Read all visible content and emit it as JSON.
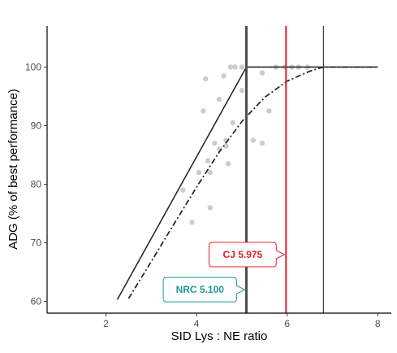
{
  "chart_data": {
    "type": "scatter",
    "xlabel": "SID Lys : NE ratio",
    "ylabel": "ADG (% of best performance)",
    "xlim": [
      0.7,
      8.3
    ],
    "ylim": [
      58.0,
      107.0
    ],
    "x_ticks": [
      2,
      4,
      6,
      8
    ],
    "y_ticks": [
      60,
      70,
      80,
      90,
      100
    ],
    "grid": false,
    "points": [
      {
        "x": 3.7,
        "y": 79.0
      },
      {
        "x": 3.9,
        "y": 73.5
      },
      {
        "x": 4.05,
        "y": 82.0
      },
      {
        "x": 4.15,
        "y": 92.5
      },
      {
        "x": 4.2,
        "y": 98.0
      },
      {
        "x": 4.25,
        "y": 84.0
      },
      {
        "x": 4.3,
        "y": 76.0
      },
      {
        "x": 4.3,
        "y": 82.0
      },
      {
        "x": 4.4,
        "y": 87.0
      },
      {
        "x": 4.5,
        "y": 86.0
      },
      {
        "x": 4.5,
        "y": 94.5
      },
      {
        "x": 4.6,
        "y": 98.5
      },
      {
        "x": 4.65,
        "y": 87.5
      },
      {
        "x": 4.65,
        "y": 86.5
      },
      {
        "x": 4.7,
        "y": 83.5
      },
      {
        "x": 4.75,
        "y": 100.0
      },
      {
        "x": 4.85,
        "y": 100.0
      },
      {
        "x": 4.8,
        "y": 90.5
      },
      {
        "x": 5.0,
        "y": 96.0
      },
      {
        "x": 5.0,
        "y": 100.0
      },
      {
        "x": 5.25,
        "y": 87.5
      },
      {
        "x": 5.45,
        "y": 99.0
      },
      {
        "x": 5.45,
        "y": 87.0
      },
      {
        "x": 5.6,
        "y": 92.5
      },
      {
        "x": 5.75,
        "y": 100.0
      },
      {
        "x": 5.95,
        "y": 100.0
      },
      {
        "x": 6.1,
        "y": 100.0
      },
      {
        "x": 6.25,
        "y": 100.0
      },
      {
        "x": 6.45,
        "y": 100.0
      }
    ],
    "series": [
      {
        "style": "solid",
        "x": [
          2.25,
          5.1,
          8.0
        ],
        "y": [
          60.3,
          100.0,
          100.0
        ]
      },
      {
        "style": "dashdot",
        "x": [
          2.5,
          3.0,
          3.5,
          4.0,
          4.5,
          5.0,
          5.5,
          6.0,
          6.5,
          6.8,
          7.2,
          8.0
        ],
        "y": [
          60.5,
          66.8,
          73.2,
          79.5,
          85.5,
          90.7,
          94.8,
          97.6,
          99.3,
          100.0,
          100.0,
          100.0
        ]
      }
    ],
    "vlines": [
      {
        "x": 5.1,
        "color": "#4d4d4d",
        "width": "thick"
      },
      {
        "x": 5.975,
        "color": "#e8202a",
        "width": "medium"
      },
      {
        "x": 6.8,
        "color": "#1a1a1a",
        "width": "thin"
      }
    ],
    "callouts": [
      {
        "label": "CJ 5.975",
        "x": 5.975,
        "y": 68.0,
        "color": "#e8202a"
      },
      {
        "label": "NRC 5.100",
        "x": 5.1,
        "y": 62.0,
        "color": "#1a9a96"
      }
    ]
  }
}
